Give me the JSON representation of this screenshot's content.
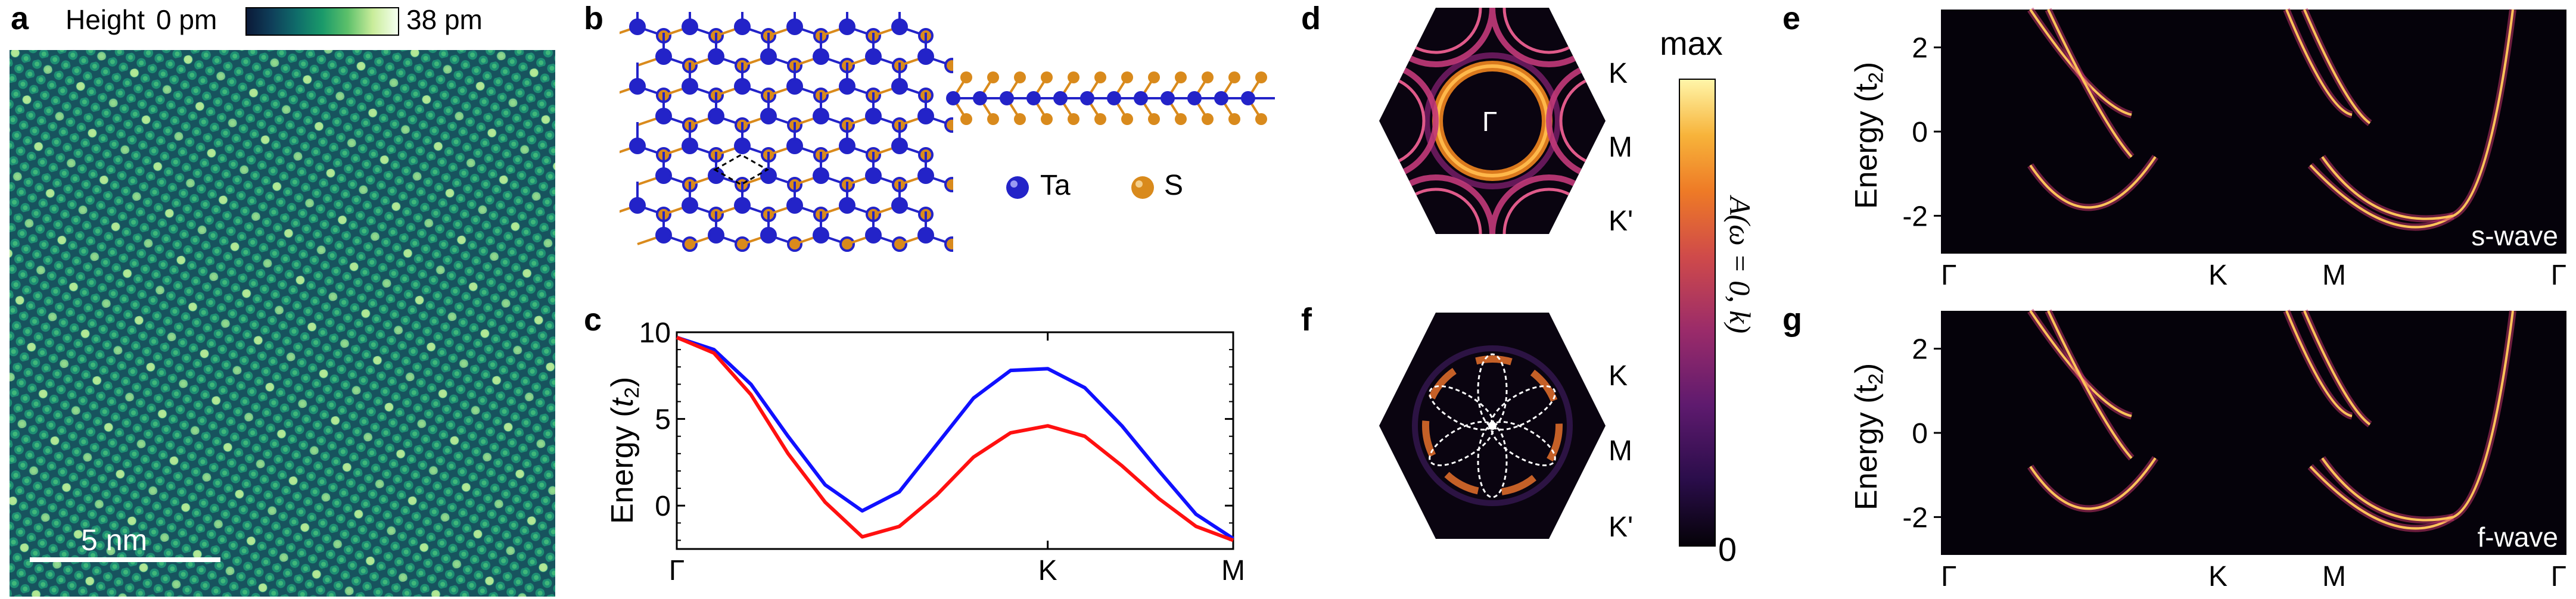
{
  "panels": {
    "a": {
      "letter": "a",
      "colorbar_title": "Height",
      "colorbar_min": "0 pm",
      "colorbar_max": "38 pm",
      "scale_bar": "5 nm"
    },
    "b": {
      "letter": "b",
      "legend": [
        {
          "label": "Ta",
          "color": "#2323c8"
        },
        {
          "label": "S",
          "color": "#d98a1c"
        }
      ]
    },
    "c": {
      "letter": "c",
      "ylabel_main": "Energy (",
      "ylabel_sub": "t",
      "ylabel_subscript": "2",
      "ylabel_close": ")",
      "yticks": [
        "10",
        "5",
        "0"
      ],
      "xticks": [
        "Γ",
        "K",
        "M"
      ]
    },
    "d": {
      "letter": "d",
      "center_label": "Γ",
      "k_labels": [
        "K",
        "M",
        "K'"
      ]
    },
    "f": {
      "letter": "f",
      "k_labels": [
        "K",
        "M",
        "K'"
      ]
    },
    "colorbar": {
      "max_label": "max",
      "min_label": "0",
      "axis_label": "A(ω = 0, k)"
    },
    "e": {
      "letter": "e",
      "tag": "s-wave",
      "ylabel": "Energy (t",
      "ylabel_sub": "2",
      "ylabel_close": ")",
      "yticks": [
        "2",
        "0",
        "-2"
      ],
      "xticks": [
        "Γ",
        "K",
        "M",
        "Γ"
      ]
    },
    "g": {
      "letter": "g",
      "tag": "f-wave",
      "ylabel": "Energy (t",
      "ylabel_sub": "2",
      "ylabel_close": ")",
      "yticks": [
        "2",
        "0",
        "-2"
      ],
      "xticks": [
        "Γ",
        "K",
        "M",
        "Γ"
      ]
    }
  },
  "chart_data": {
    "type": "line",
    "categories": [
      "Γ",
      "K",
      "M"
    ],
    "xlabel": "",
    "ylabel": "Energy (t2)",
    "ylim": [
      -2.5,
      10
    ],
    "series": [
      {
        "color": "#1010ff",
        "x": [
          0,
          0.1,
          0.2,
          0.3,
          0.4,
          0.5,
          0.6,
          0.7,
          0.8,
          0.9,
          1.0,
          1.1,
          1.2,
          1.3,
          1.4,
          1.5
        ],
        "values": [
          9.7,
          9.0,
          7.0,
          4.0,
          1.2,
          -0.3,
          0.8,
          3.5,
          6.2,
          7.8,
          7.9,
          6.8,
          4.6,
          2.0,
          -0.5,
          -1.9
        ]
      },
      {
        "color": "#ff1010",
        "x": [
          0,
          0.1,
          0.2,
          0.3,
          0.4,
          0.5,
          0.6,
          0.7,
          0.8,
          0.9,
          1.0,
          1.1,
          1.2,
          1.3,
          1.4,
          1.5
        ],
        "values": [
          9.7,
          8.8,
          6.4,
          3.0,
          0.2,
          -1.8,
          -1.2,
          0.6,
          2.8,
          4.2,
          4.6,
          4.0,
          2.3,
          0.4,
          -1.2,
          -2.0
        ]
      }
    ],
    "x_tick_positions": [
      0,
      1,
      1.5
    ]
  }
}
